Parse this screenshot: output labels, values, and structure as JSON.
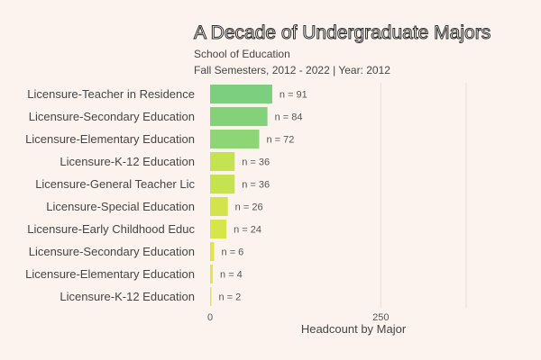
{
  "chart_data": {
    "type": "bar",
    "orientation": "horizontal",
    "title": "A Decade of Undergraduate Majors",
    "subtitle": [
      "School of Education",
      "Fall Semesters, 2012 - 2022 | Year: 2012"
    ],
    "xlabel": "Headcount by Major",
    "ylabel": "",
    "categories": [
      "Licensure-Teacher in Residence",
      "Licensure-Secondary Education",
      "Licensure-Elementary Education",
      "Licensure-K-12 Education",
      "Licensure-General Teacher Lic",
      "Licensure-Special Education",
      "Licensure-Early Childhood Educ",
      "Licensure-Secondary Education",
      "Licensure-Elementary Education",
      "Licensure-K-12 Education"
    ],
    "values": [
      91,
      84,
      72,
      36,
      36,
      26,
      24,
      6,
      4,
      2
    ],
    "data_labels": [
      "n = 91",
      "n = 84",
      "n = 72",
      "n = 36",
      "n = 36",
      "n = 26",
      "n = 24",
      "n = 6",
      "n = 4",
      "n = 2"
    ],
    "bar_colors": [
      "#7CCF7E",
      "#83D27A",
      "#8ED675",
      "#C5E24F",
      "#C5E24F",
      "#D2E44B",
      "#D5E54A",
      "#E3E547",
      "#E4E547",
      "#E6E546"
    ],
    "xlim": [
      0,
      420
    ],
    "xticks": [
      0,
      250
    ],
    "gridlines": [
      250,
      375
    ],
    "colors": {
      "background": "#FCF3EF",
      "gridline": "#E6DEDB",
      "title_fill": "#FFFFFF",
      "title_outline": "#2B2B2B",
      "text": "#454545",
      "muted_text": "#555555"
    }
  }
}
